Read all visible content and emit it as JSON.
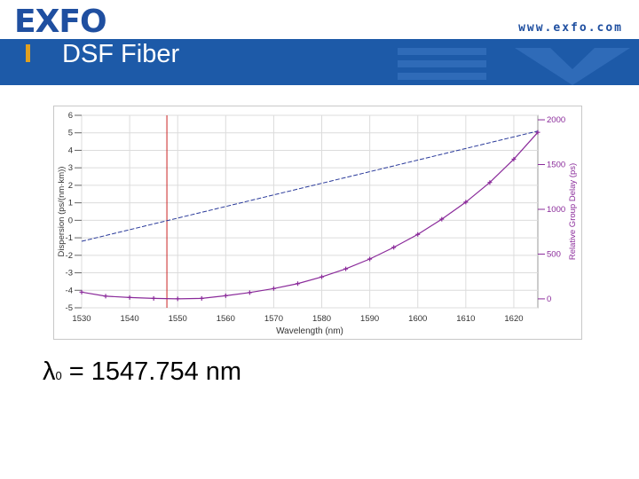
{
  "header": {
    "logo": "EXFO",
    "url": "www.exfo.com",
    "title": "DSF Fiber",
    "band_color": "#1d5aa8",
    "bar_colors": [
      "#1d5aa8",
      "#e0a020",
      "#1d5aa8",
      "#1d5aa8"
    ]
  },
  "formula": {
    "symbol": "λ",
    "subscript": "0",
    "text": "= 1547.754 nm"
  },
  "chart_data": {
    "type": "line",
    "xlabel": "Wavelength (nm)",
    "ylabel_left": "Dispersion (ps/(nm·km))",
    "ylabel_right": "Relative Group Delay (ps)",
    "xlim": [
      1530,
      1625
    ],
    "ylim_left": [
      -5,
      6
    ],
    "ylim_right": [
      -100,
      2050
    ],
    "x_ticks": [
      1530,
      1540,
      1550,
      1560,
      1570,
      1580,
      1590,
      1600,
      1610,
      1620
    ],
    "y_ticks_left": [
      6,
      5,
      4,
      3,
      2,
      1,
      0,
      -1,
      -2,
      -3,
      -4,
      -5
    ],
    "y_ticks_right": [
      2000,
      1500,
      1000,
      500,
      0
    ],
    "grid": true,
    "zero_crossing_wavelength": 1547.754,
    "colors": {
      "dispersion": "#2a3a9a",
      "delay": "#8a2a9a",
      "marker": "#cc2222"
    },
    "series": [
      {
        "axis": "left",
        "x": [
          1530,
          1625
        ],
        "y": [
          -1.2,
          5.1
        ]
      },
      {
        "axis": "right",
        "x": [
          1530,
          1535,
          1540,
          1545,
          1550,
          1555,
          1560,
          1565,
          1570,
          1575,
          1580,
          1585,
          1590,
          1595,
          1600,
          1605,
          1610,
          1615,
          1620,
          1625
        ],
        "y": [
          75,
          30,
          15,
          5,
          0,
          5,
          35,
          70,
          115,
          170,
          245,
          335,
          445,
          575,
          720,
          890,
          1080,
          1300,
          1560,
          1860
        ]
      }
    ]
  }
}
